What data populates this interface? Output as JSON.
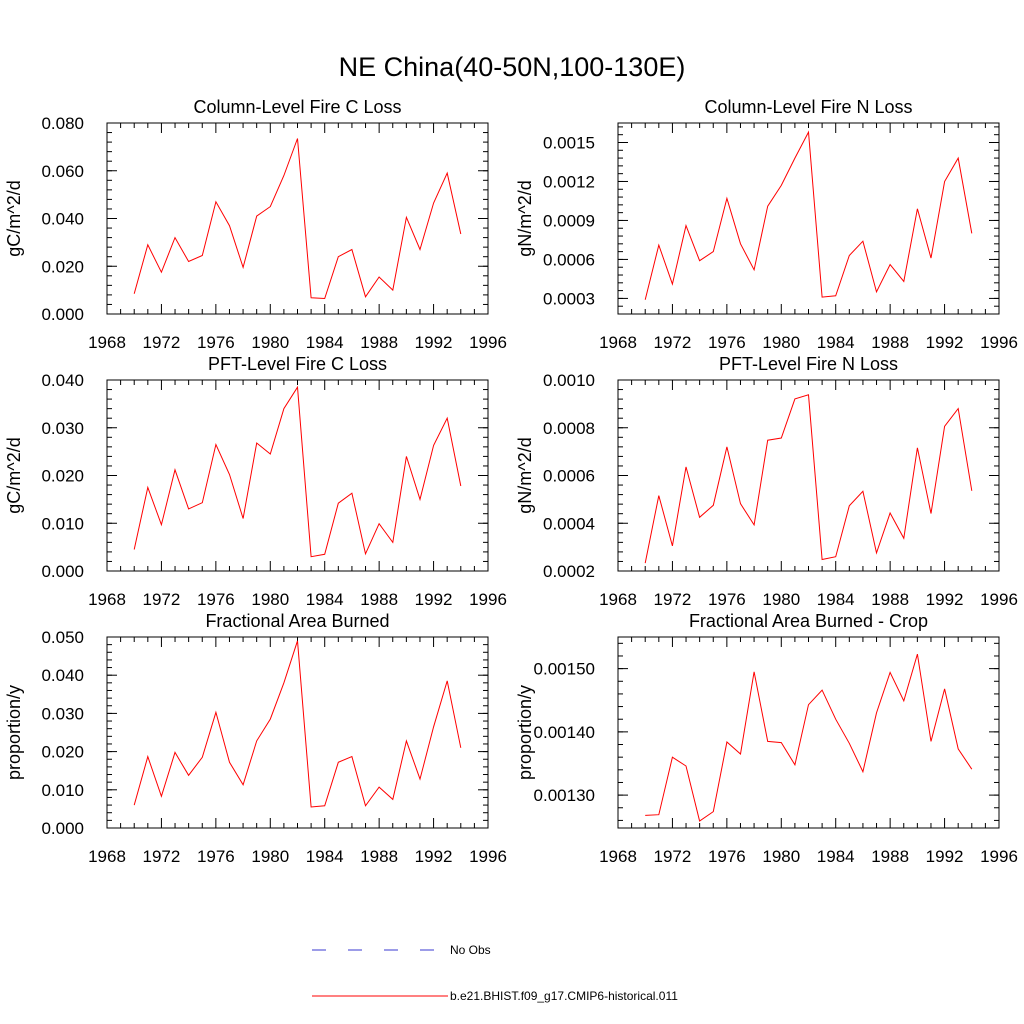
{
  "figure": {
    "title": "NE China(40-50N,100-130E)"
  },
  "legend": [
    {
      "label": "No Obs",
      "color": "#3a3ad0",
      "style": "dashed"
    },
    {
      "label": "b.e21.BHIST.f09_g17.CMIP6-historical.011",
      "color": "#ff0000",
      "style": "solid"
    }
  ],
  "chart_data": [
    {
      "type": "line",
      "title": "Column-Level Fire C Loss",
      "ylabel": "gC/m^2/d",
      "xlim": [
        1968,
        1996
      ],
      "ylim": [
        0.0,
        0.08
      ],
      "x_ticks": [
        "1968",
        "1972",
        "1976",
        "1980",
        "1984",
        "1988",
        "1992",
        "1996"
      ],
      "y_ticks": [
        "0.000",
        "0.020",
        "0.040",
        "0.060",
        "0.080"
      ],
      "x": [
        1970,
        1971,
        1972,
        1973,
        1974,
        1975,
        1976,
        1977,
        1978,
        1979,
        1980,
        1981,
        1982,
        1983,
        1984,
        1985,
        1986,
        1987,
        1988,
        1989,
        1990,
        1991,
        1992,
        1993,
        1994
      ],
      "series": [
        {
          "color": "#ff0000",
          "values": [
            0.0085,
            0.029,
            0.0175,
            0.032,
            0.022,
            0.0245,
            0.047,
            0.037,
            0.0195,
            0.041,
            0.045,
            0.058,
            0.0735,
            0.0068,
            0.0065,
            0.024,
            0.027,
            0.0072,
            0.0155,
            0.01,
            0.0405,
            0.027,
            0.0465,
            0.059,
            0.0335
          ]
        }
      ]
    },
    {
      "type": "line",
      "title": "Column-Level Fire N Loss",
      "ylabel": "gN/m^2/d",
      "xlim": [
        1968,
        1996
      ],
      "ylim": [
        0.00018,
        0.00165
      ],
      "x_ticks": [
        "1968",
        "1972",
        "1976",
        "1980",
        "1984",
        "1988",
        "1992",
        "1996"
      ],
      "y_ticks": [
        "0.0003",
        "0.0006",
        "0.0009",
        "0.0012",
        "0.0015"
      ],
      "y_tick_values": [
        0.0003,
        0.0006,
        0.0009,
        0.0012,
        0.0015
      ],
      "x": [
        1970,
        1971,
        1972,
        1973,
        1974,
        1975,
        1976,
        1977,
        1978,
        1979,
        1980,
        1981,
        1982,
        1983,
        1984,
        1985,
        1986,
        1987,
        1988,
        1989,
        1990,
        1991,
        1992,
        1993,
        1994
      ],
      "series": [
        {
          "color": "#ff0000",
          "values": [
            0.00029,
            0.00071,
            0.00041,
            0.00086,
            0.00059,
            0.00066,
            0.00107,
            0.00072,
            0.00052,
            0.00101,
            0.00117,
            0.00138,
            0.00158,
            0.00031,
            0.00032,
            0.00063,
            0.00074,
            0.00035,
            0.00056,
            0.00043,
            0.00099,
            0.00061,
            0.0012,
            0.00138,
            0.0008
          ]
        }
      ]
    },
    {
      "type": "line",
      "title": "PFT-Level Fire C Loss",
      "ylabel": "gC/m^2/d",
      "xlim": [
        1968,
        1996
      ],
      "ylim": [
        0.0,
        0.04
      ],
      "x_ticks": [
        "1968",
        "1972",
        "1976",
        "1980",
        "1984",
        "1988",
        "1992",
        "1996"
      ],
      "y_ticks": [
        "0.000",
        "0.010",
        "0.020",
        "0.030",
        "0.040"
      ],
      "x": [
        1970,
        1971,
        1972,
        1973,
        1974,
        1975,
        1976,
        1977,
        1978,
        1979,
        1980,
        1981,
        1982,
        1983,
        1984,
        1985,
        1986,
        1987,
        1988,
        1989,
        1990,
        1991,
        1992,
        1993,
        1994
      ],
      "series": [
        {
          "color": "#ff0000",
          "values": [
            0.0045,
            0.0175,
            0.0097,
            0.0212,
            0.013,
            0.0143,
            0.0265,
            0.0202,
            0.011,
            0.0268,
            0.0245,
            0.034,
            0.0385,
            0.003,
            0.0035,
            0.0142,
            0.0163,
            0.0036,
            0.0099,
            0.006,
            0.024,
            0.015,
            0.0263,
            0.032,
            0.0178
          ]
        }
      ]
    },
    {
      "type": "line",
      "title": "PFT-Level Fire N Loss",
      "ylabel": "gN/m^2/d",
      "xlim": [
        1968,
        1996
      ],
      "ylim": [
        0.0002,
        0.001
      ],
      "x_ticks": [
        "1968",
        "1972",
        "1976",
        "1980",
        "1984",
        "1988",
        "1992",
        "1996"
      ],
      "y_ticks": [
        "0.0002",
        "0.0004",
        "0.0006",
        "0.0008",
        "0.0010"
      ],
      "x": [
        1970,
        1971,
        1972,
        1973,
        1974,
        1975,
        1976,
        1977,
        1978,
        1979,
        1980,
        1981,
        1982,
        1983,
        1984,
        1985,
        1986,
        1987,
        1988,
        1989,
        1990,
        1991,
        1992,
        1993,
        1994
      ],
      "series": [
        {
          "color": "#ff0000",
          "values": [
            0.000233,
            0.000516,
            0.000305,
            0.000636,
            0.000425,
            0.000475,
            0.00072,
            0.000482,
            0.000393,
            0.000748,
            0.000757,
            0.000921,
            0.000938,
            0.000248,
            0.00026,
            0.000473,
            0.000534,
            0.000276,
            0.000443,
            0.000337,
            0.000716,
            0.000441,
            0.000806,
            0.00088,
            0.000536
          ]
        }
      ]
    },
    {
      "type": "line",
      "title": "Fractional Area Burned",
      "ylabel": "proportion/y",
      "xlim": [
        1968,
        1996
      ],
      "ylim": [
        0.0,
        0.05
      ],
      "x_ticks": [
        "1968",
        "1972",
        "1976",
        "1980",
        "1984",
        "1988",
        "1992",
        "1996"
      ],
      "y_ticks": [
        "0.000",
        "0.010",
        "0.020",
        "0.030",
        "0.040",
        "0.050"
      ],
      "x": [
        1970,
        1971,
        1972,
        1973,
        1974,
        1975,
        1976,
        1977,
        1978,
        1979,
        1980,
        1981,
        1982,
        1983,
        1984,
        1985,
        1986,
        1987,
        1988,
        1989,
        1990,
        1991,
        1992,
        1993,
        1994
      ],
      "series": [
        {
          "color": "#ff0000",
          "values": [
            0.006,
            0.0187,
            0.0083,
            0.0198,
            0.0138,
            0.0185,
            0.0303,
            0.0172,
            0.0113,
            0.0228,
            0.0285,
            0.038,
            0.049,
            0.0055,
            0.0058,
            0.0172,
            0.0187,
            0.0058,
            0.0107,
            0.0075,
            0.0228,
            0.0128,
            0.0265,
            0.0385,
            0.021
          ]
        }
      ]
    },
    {
      "type": "line",
      "title": "Fractional Area Burned - Crop",
      "ylabel": "proportion/y",
      "xlim": [
        1968,
        1996
      ],
      "ylim": [
        0.001248,
        0.00155
      ],
      "x_ticks": [
        "1968",
        "1972",
        "1976",
        "1980",
        "1984",
        "1988",
        "1992",
        "1996"
      ],
      "y_ticks": [
        "0.00130",
        "0.00140",
        "0.00150"
      ],
      "y_tick_values": [
        0.0013,
        0.0014,
        0.0015
      ],
      "x": [
        1970,
        1971,
        1972,
        1973,
        1974,
        1975,
        1976,
        1977,
        1978,
        1979,
        1980,
        1981,
        1982,
        1983,
        1984,
        1985,
        1986,
        1987,
        1988,
        1989,
        1990,
        1991,
        1992,
        1993,
        1994
      ],
      "series": [
        {
          "color": "#ff0000",
          "values": [
            0.001268,
            0.001269,
            0.00136,
            0.001346,
            0.001259,
            0.001274,
            0.001384,
            0.001365,
            0.001495,
            0.001385,
            0.001383,
            0.001348,
            0.001443,
            0.001466,
            0.00142,
            0.001382,
            0.001337,
            0.00143,
            0.001494,
            0.001449,
            0.001523,
            0.001385,
            0.001468,
            0.001373,
            0.001341
          ]
        }
      ]
    }
  ]
}
